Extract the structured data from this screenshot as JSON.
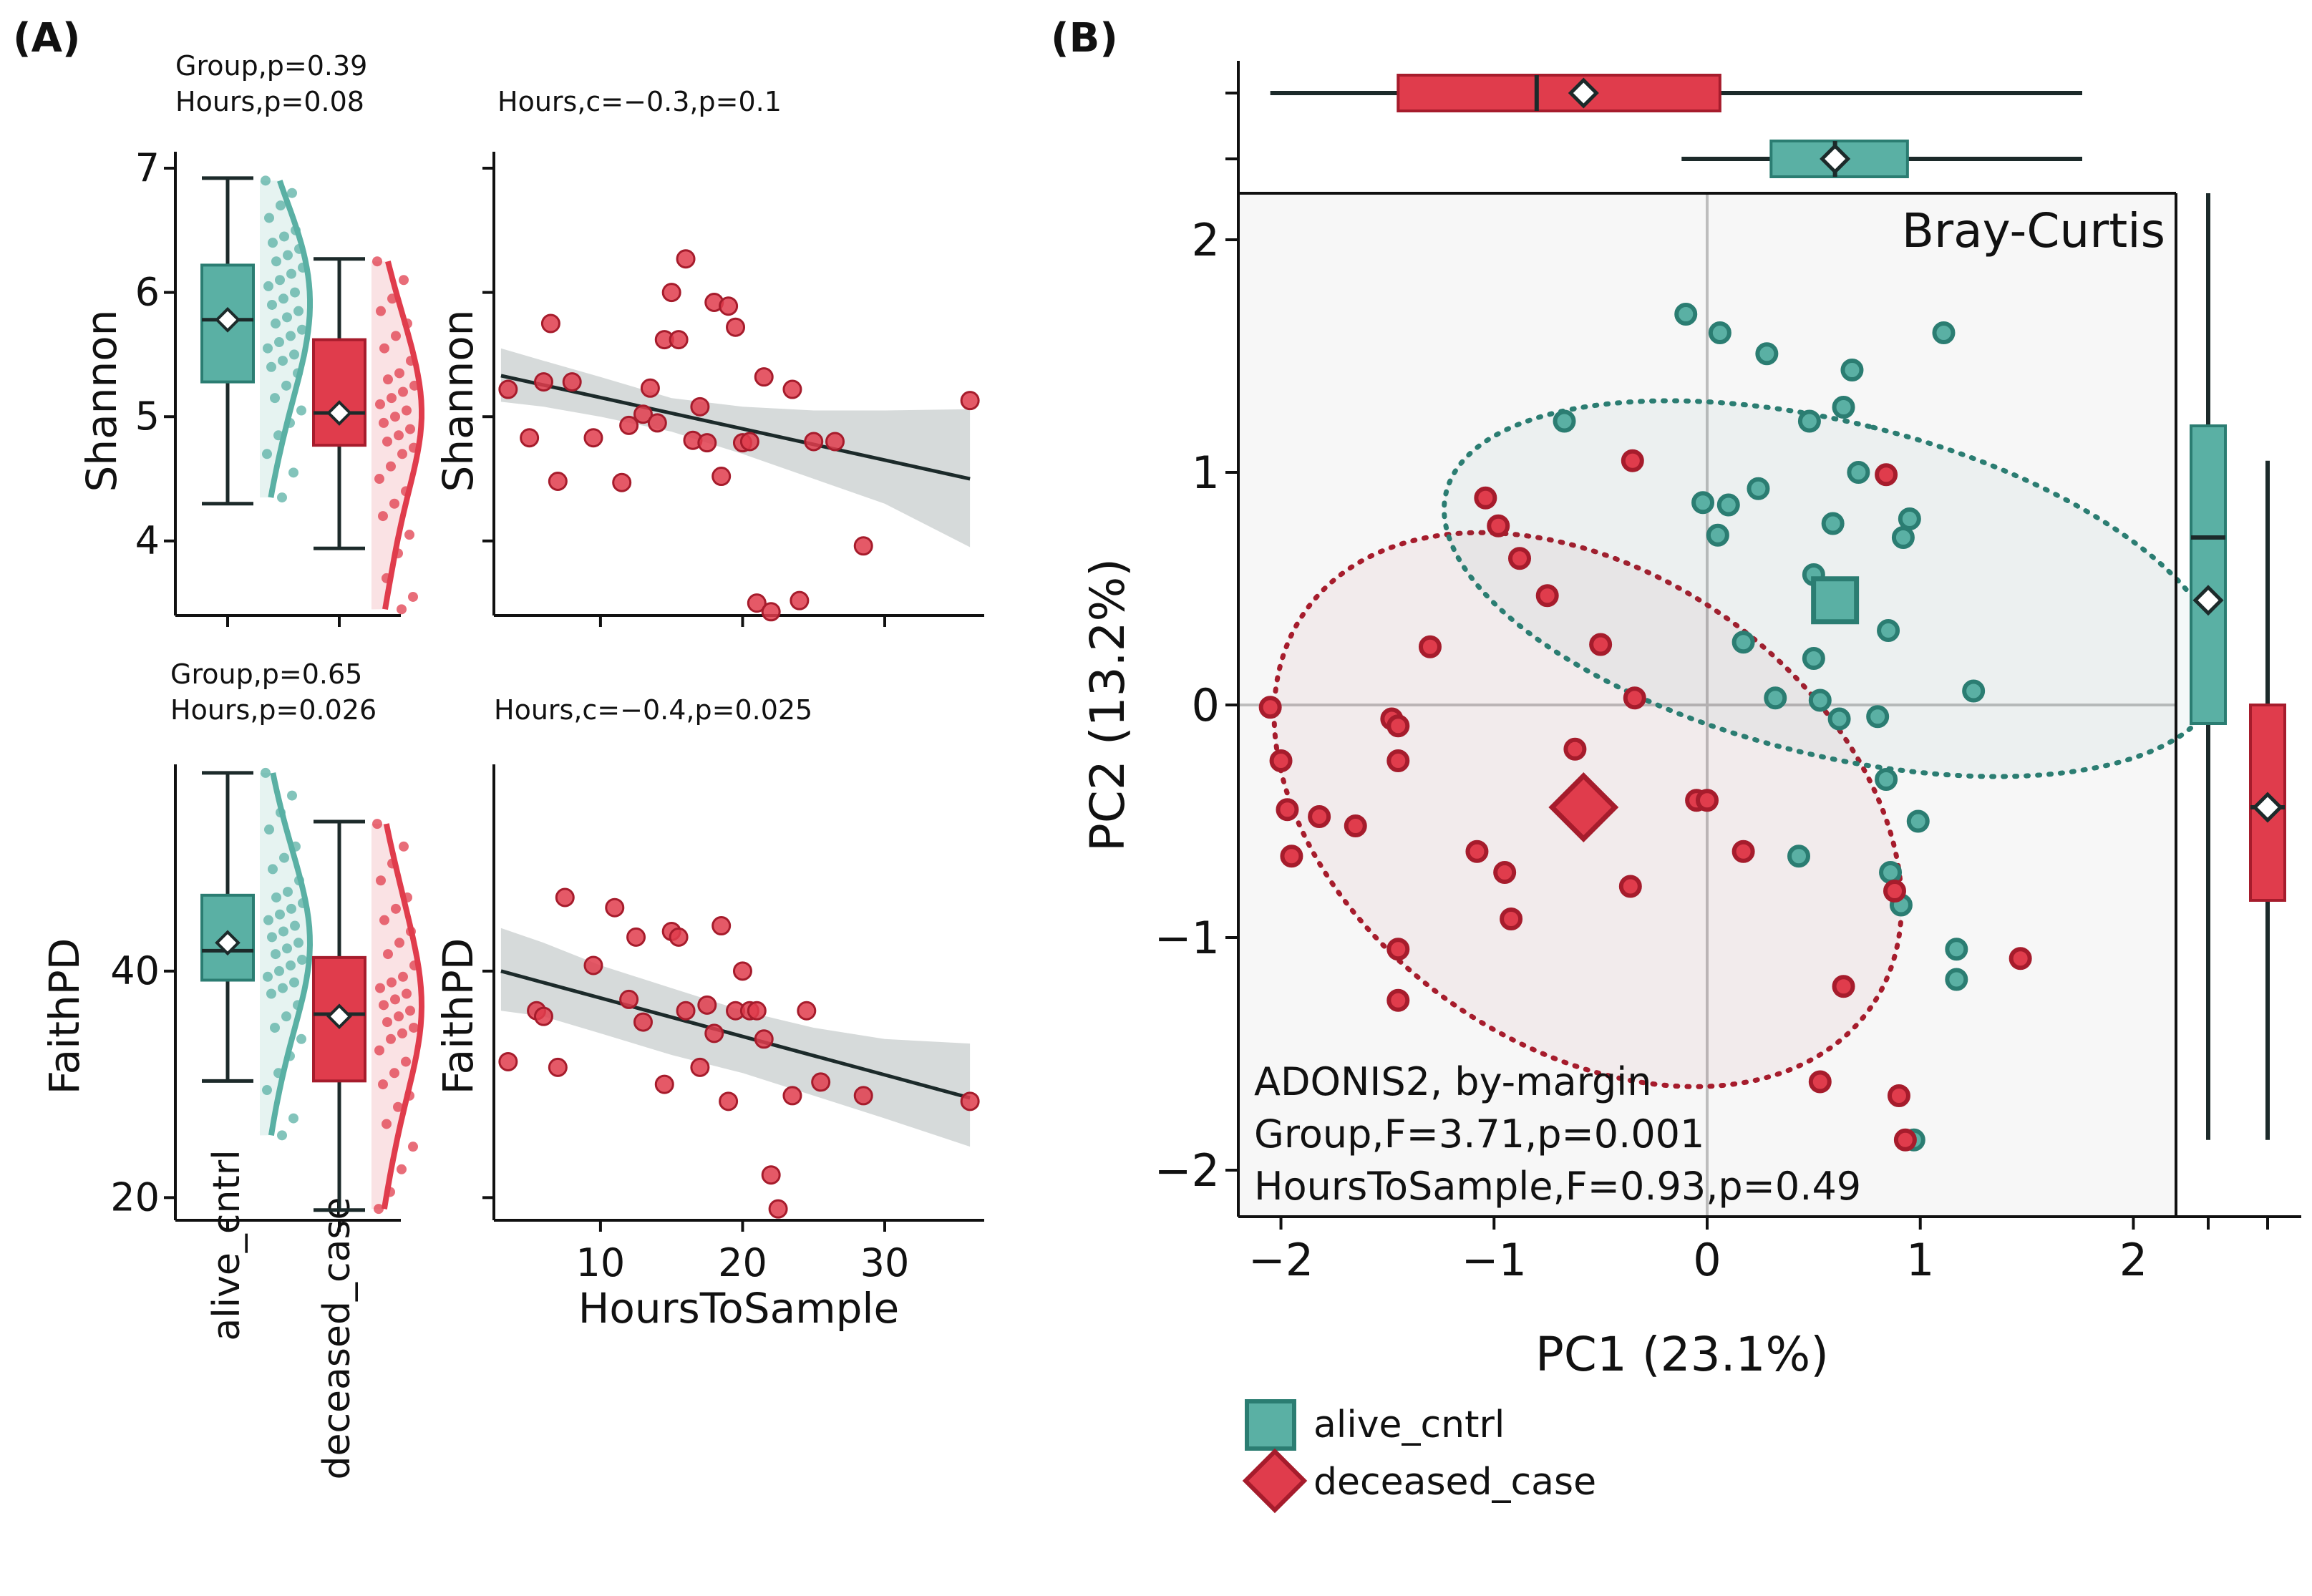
{
  "colors": {
    "alive": "#5ab0a4",
    "alive_dark": "#2b7d72",
    "deceased": "#e03c4c",
    "deceased_dark": "#a61c2c",
    "band": "#c8cdcd",
    "line": "#1c2a2a",
    "bg_b": "#f7f7f7"
  },
  "panel_a": {
    "label": "(A)",
    "shannon": {
      "stat_line1": "Group,p=0.39",
      "stat_line2": "Hours,p=0.08",
      "scatter_stat": "Hours,c=−0.3,p=0.1",
      "ylabel": "Shannon",
      "yticks": [
        "4",
        "5",
        "6",
        "7"
      ],
      "ylim": [
        3.4,
        7.0
      ],
      "box_alive": {
        "min": 4.3,
        "q1": 5.28,
        "median": 5.78,
        "q3": 6.22,
        "max": 6.92,
        "mean": 5.78
      },
      "box_deceased": {
        "min": 3.94,
        "q1": 4.77,
        "median": 5.03,
        "q3": 5.62,
        "max": 6.27,
        "mean": 5.03
      },
      "points_alive": [
        6.9,
        6.8,
        6.7,
        6.6,
        6.5,
        6.45,
        6.4,
        6.35,
        6.3,
        6.25,
        6.2,
        6.15,
        6.1,
        6.05,
        6.0,
        5.95,
        5.9,
        5.85,
        5.8,
        5.75,
        5.7,
        5.65,
        5.6,
        5.55,
        5.5,
        5.45,
        5.4,
        5.35,
        5.25,
        5.15,
        5.05,
        4.95,
        4.85,
        4.7,
        4.55,
        4.35
      ],
      "points_deceased": [
        6.25,
        6.1,
        5.95,
        5.85,
        5.75,
        5.65,
        5.55,
        5.45,
        5.35,
        5.3,
        5.25,
        5.2,
        5.15,
        5.1,
        5.05,
        5.0,
        4.95,
        4.9,
        4.85,
        4.8,
        4.75,
        4.7,
        4.6,
        4.5,
        4.4,
        4.3,
        4.2,
        4.05,
        3.9,
        3.7,
        3.55,
        3.45
      ],
      "scatter": {
        "x": [
          3.5,
          5.0,
          6.0,
          6.5,
          7.0,
          8.0,
          9.5,
          11.5,
          12.0,
          13.0,
          13.5,
          14.0,
          14.5,
          15.0,
          15.5,
          16.0,
          16.5,
          17.0,
          17.5,
          18.0,
          18.5,
          19.0,
          19.5,
          20.0,
          20.5,
          21.0,
          21.5,
          22.0,
          23.5,
          24.0,
          25.0,
          26.5,
          28.5,
          36.0
        ],
        "y": [
          5.22,
          4.83,
          5.28,
          5.75,
          4.48,
          5.28,
          4.83,
          4.47,
          4.93,
          5.02,
          5.23,
          4.95,
          5.62,
          6.0,
          5.62,
          6.27,
          4.81,
          5.08,
          4.79,
          5.92,
          4.52,
          5.89,
          5.72,
          4.79,
          4.8,
          3.5,
          5.32,
          3.43,
          5.22,
          3.52,
          4.8,
          4.8,
          3.96,
          5.13
        ],
        "fit": {
          "x": [
            3.0,
            36.0
          ],
          "y": [
            5.33,
            4.5
          ]
        },
        "band": {
          "x": [
            3.0,
            6,
            10,
            15,
            20,
            25,
            30,
            36.0
          ],
          "lo": [
            5.12,
            5.08,
            5.0,
            4.88,
            4.7,
            4.5,
            4.3,
            3.95
          ],
          "hi": [
            5.55,
            5.45,
            5.32,
            5.15,
            5.08,
            5.05,
            5.05,
            5.06
          ]
        }
      }
    },
    "faith": {
      "stat_line1": "Group,p=0.65",
      "stat_line2": "Hours,p=0.026",
      "scatter_stat": "Hours,c=−0.4,p=0.025",
      "ylabel": "FaithPD",
      "yticks": [
        "20",
        "40"
      ],
      "ylim": [
        18.0,
        58.0
      ],
      "box_alive": {
        "min": 30.3,
        "q1": 39.2,
        "median": 41.8,
        "q3": 46.7,
        "max": 57.5,
        "mean": 42.5
      },
      "box_deceased": {
        "min": 18.9,
        "q1": 30.3,
        "median": 36.2,
        "q3": 41.2,
        "max": 53.2,
        "mean": 36.0
      },
      "points_alive": [
        57.5,
        55.5,
        54.0,
        52.5,
        51.0,
        50.0,
        49.0,
        48.0,
        47.0,
        46.5,
        46.0,
        45.5,
        45.0,
        44.5,
        44.0,
        43.5,
        43.0,
        42.5,
        42.0,
        41.5,
        41.0,
        40.5,
        40.0,
        39.5,
        39.0,
        38.5,
        38.0,
        37.0,
        36.0,
        35.0,
        34.0,
        32.5,
        31.0,
        29.5,
        27.0,
        25.5
      ],
      "points_deceased": [
        53.0,
        51.0,
        49.5,
        48.0,
        46.5,
        45.5,
        44.5,
        43.5,
        42.5,
        41.5,
        40.5,
        39.5,
        39.0,
        38.5,
        38.0,
        37.5,
        37.0,
        36.5,
        36.0,
        35.5,
        35.0,
        34.5,
        34.0,
        33.0,
        32.0,
        31.0,
        30.0,
        29.0,
        28.0,
        26.5,
        24.5,
        22.5,
        20.5,
        19.0
      ],
      "scatter": {
        "x": [
          3.5,
          5.5,
          6.0,
          7.0,
          7.5,
          9.5,
          11.0,
          12.0,
          12.5,
          13.0,
          14.5,
          15.0,
          15.5,
          16.0,
          17.0,
          17.5,
          18.0,
          18.5,
          19.0,
          19.5,
          20.0,
          20.5,
          21.0,
          21.5,
          22.0,
          22.5,
          23.5,
          24.5,
          25.5,
          28.5,
          36.0
        ],
        "y": [
          32.0,
          36.5,
          36.0,
          31.5,
          46.5,
          40.5,
          45.6,
          37.5,
          43.0,
          35.5,
          30.0,
          43.5,
          43.0,
          36.5,
          31.5,
          37.0,
          34.5,
          44.0,
          28.5,
          36.5,
          40.0,
          36.5,
          36.5,
          34.0,
          22.0,
          19.0,
          29.0,
          36.5,
          30.2,
          29.0,
          28.5
        ],
        "fit": {
          "x": [
            3.0,
            36.0
          ],
          "y": [
            40.0,
            28.8
          ]
        },
        "band": {
          "x": [
            3.0,
            6,
            10,
            15,
            20,
            25,
            30,
            36.0
          ],
          "lo": [
            36.5,
            36.0,
            34.5,
            32.6,
            31.0,
            29.0,
            27.0,
            24.5
          ],
          "hi": [
            43.8,
            42.5,
            40.5,
            38.5,
            36.5,
            35.0,
            34.0,
            33.6
          ]
        }
      }
    },
    "xlabel": "HoursToSample",
    "xticks": [
      "10",
      "20",
      "30"
    ],
    "xlim": [
      2.5,
      37.0
    ],
    "categories": [
      "alive_cntrl",
      "deceased_case"
    ]
  },
  "panel_b": {
    "label": "(B)",
    "title": "Bray-Curtis",
    "xlabel": "PC1 (23.1%)",
    "ylabel": "PC2 (13.2%)",
    "xticks": [
      "−2",
      "−1",
      "0",
      "1",
      "2"
    ],
    "yticks": [
      "−2",
      "−1",
      "0",
      "1",
      "2"
    ],
    "xlim": [
      -2.2,
      2.2
    ],
    "ylim": [
      -2.2,
      2.2
    ],
    "annotation_line1": "ADONIS2, by-margin",
    "annotation_line2": "Group,F=3.71,p=0.001",
    "annotation_line3": "HoursToSample,F=0.93,p=0.49",
    "legend": [
      "alive_cntrl",
      "deceased_case"
    ],
    "alive_points": [
      [
        -0.1,
        1.68
      ],
      [
        0.06,
        1.6
      ],
      [
        0.28,
        1.51
      ],
      [
        1.11,
        1.6
      ],
      [
        0.68,
        1.44
      ],
      [
        -0.67,
        1.22
      ],
      [
        0.48,
        1.22
      ],
      [
        0.64,
        1.28
      ],
      [
        0.24,
        0.93
      ],
      [
        -0.02,
        0.87
      ],
      [
        0.1,
        0.86
      ],
      [
        0.05,
        0.73
      ],
      [
        0.59,
        0.78
      ],
      [
        0.71,
        1.0
      ],
      [
        0.95,
        0.8
      ],
      [
        0.92,
        0.72
      ],
      [
        0.5,
        0.56
      ],
      [
        0.17,
        0.27
      ],
      [
        0.5,
        0.2
      ],
      [
        0.85,
        0.32
      ],
      [
        1.25,
        0.06
      ],
      [
        0.53,
        0.02
      ],
      [
        0.32,
        0.03
      ],
      [
        0.62,
        -0.06
      ],
      [
        0.8,
        -0.05
      ],
      [
        0.84,
        -0.32
      ],
      [
        0.99,
        -0.5
      ],
      [
        0.43,
        -0.65
      ],
      [
        0.86,
        -0.72
      ],
      [
        0.91,
        -0.86
      ],
      [
        1.17,
        -1.05
      ],
      [
        1.17,
        -1.18
      ],
      [
        0.97,
        -1.87
      ],
      [
        0.6,
        0.47
      ]
    ],
    "deceased_points": [
      [
        -1.04,
        0.89
      ],
      [
        -0.98,
        0.77
      ],
      [
        -0.35,
        1.05
      ],
      [
        -0.88,
        0.63
      ],
      [
        -0.75,
        0.47
      ],
      [
        -0.5,
        0.26
      ],
      [
        -1.3,
        0.25
      ],
      [
        -0.34,
        0.03
      ],
      [
        -2.05,
        -0.01
      ],
      [
        -1.48,
        -0.06
      ],
      [
        -1.45,
        -0.09
      ],
      [
        -1.45,
        -0.24
      ],
      [
        -2.0,
        -0.24
      ],
      [
        -0.62,
        -0.19
      ],
      [
        -1.97,
        -0.45
      ],
      [
        -1.82,
        -0.48
      ],
      [
        -1.65,
        -0.52
      ],
      [
        -1.95,
        -0.65
      ],
      [
        -1.08,
        -0.63
      ],
      [
        -0.95,
        -0.72
      ],
      [
        -0.36,
        -0.78
      ],
      [
        -0.92,
        -0.92
      ],
      [
        -1.45,
        -1.05
      ],
      [
        -1.45,
        -1.27
      ],
      [
        0.84,
        0.99
      ],
      [
        -0.05,
        -0.41
      ],
      [
        0.0,
        -0.41
      ],
      [
        0.17,
        -0.63
      ],
      [
        0.88,
        -0.8
      ],
      [
        1.47,
        -1.09
      ],
      [
        0.64,
        -1.21
      ],
      [
        0.53,
        -1.62
      ],
      [
        0.9,
        -1.68
      ],
      [
        0.93,
        -1.87
      ]
    ],
    "alive_centroid": [
      0.6,
      0.45
    ],
    "deceased_centroid": [
      -0.58,
      -0.44
    ],
    "alive_ellipse": {
      "cx": 0.59,
      "cy": 0.5,
      "rx": 0.78,
      "ry": 1.87,
      "angle_deg": 76
    },
    "deceased_ellipse": {
      "cx": -0.56,
      "cy": -0.45,
      "rx": 1.62,
      "ry": 1.11,
      "angle_deg": -35
    },
    "top_box_deceased": {
      "min": -2.05,
      "q1": -1.45,
      "median": -0.8,
      "q3": 0.06,
      "max": 1.76,
      "mean": -0.58
    },
    "top_box_alive": {
      "min": -0.12,
      "q1": 0.3,
      "median": 0.6,
      "q3": 0.94,
      "max": 1.76,
      "mean": 0.6
    },
    "right_box_alive": {
      "min": -1.87,
      "q1": -0.08,
      "median": 0.72,
      "q3": 1.2,
      "max": 2.2,
      "mean": 0.45
    },
    "right_box_deceased": {
      "min": -1.87,
      "q1": -0.84,
      "median": -0.44,
      "q3": 0.0,
      "max": 1.05,
      "mean": -0.44
    }
  }
}
